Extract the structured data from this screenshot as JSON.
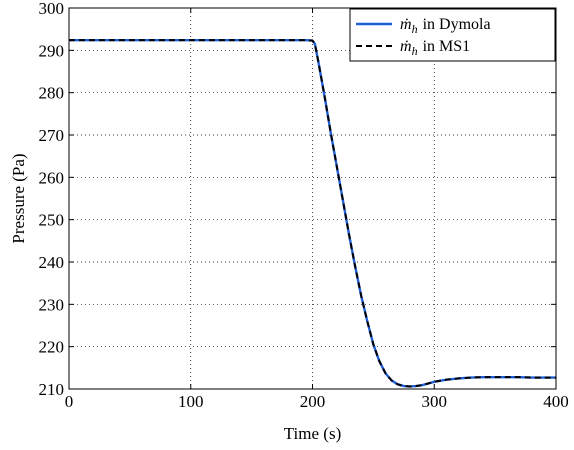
{
  "chart_data": {
    "type": "line",
    "title": "",
    "xlabel": "Time (s)",
    "ylabel": "Pressure (Pa)",
    "xlim": [
      0,
      400
    ],
    "ylim": [
      210,
      300
    ],
    "xticks": [
      0,
      100,
      200,
      300,
      400
    ],
    "yticks": [
      210,
      220,
      230,
      240,
      250,
      260,
      270,
      280,
      290,
      300
    ],
    "grid": true,
    "legend_position": "top-right",
    "series": [
      {
        "name": "in Dymola",
        "legend_symbol": "ṁ",
        "legend_subscript": "h",
        "color": "#1f5fd6",
        "style": "solid",
        "x": [
          0,
          50,
          100,
          150,
          195,
          200,
          202,
          205,
          210,
          215,
          220,
          225,
          230,
          235,
          240,
          245,
          250,
          255,
          260,
          265,
          270,
          275,
          280,
          285,
          290,
          295,
          300,
          310,
          320,
          330,
          340,
          350,
          360,
          370,
          380,
          390,
          400
        ],
        "y": [
          292.4,
          292.4,
          292.4,
          292.4,
          292.4,
          292.3,
          291.5,
          287,
          279,
          270.5,
          262.5,
          254.5,
          246.5,
          239,
          232,
          226,
          220.5,
          216.5,
          213.7,
          212,
          211.1,
          210.7,
          210.6,
          210.7,
          210.9,
          211.3,
          211.7,
          212.2,
          212.5,
          212.7,
          212.8,
          212.8,
          212.8,
          212.8,
          212.7,
          212.7,
          212.7
        ]
      },
      {
        "name": "in MS1",
        "legend_symbol": "ṁ",
        "legend_subscript": "h",
        "color": "#000000",
        "style": "dashed",
        "x": [
          0,
          50,
          100,
          150,
          195,
          200,
          202,
          205,
          210,
          215,
          220,
          225,
          230,
          235,
          240,
          245,
          250,
          255,
          260,
          265,
          270,
          275,
          280,
          285,
          290,
          295,
          300,
          310,
          320,
          330,
          340,
          350,
          360,
          370,
          380,
          390,
          400
        ],
        "y": [
          292.4,
          292.4,
          292.4,
          292.4,
          292.4,
          292.3,
          291.5,
          287,
          279,
          270.5,
          262.5,
          254.5,
          246.5,
          239,
          232,
          226,
          220.5,
          216.5,
          213.7,
          212,
          211.1,
          210.7,
          210.6,
          210.7,
          210.9,
          211.3,
          211.7,
          212.2,
          212.5,
          212.7,
          212.8,
          212.8,
          212.8,
          212.8,
          212.7,
          212.7,
          212.7
        ]
      }
    ]
  }
}
